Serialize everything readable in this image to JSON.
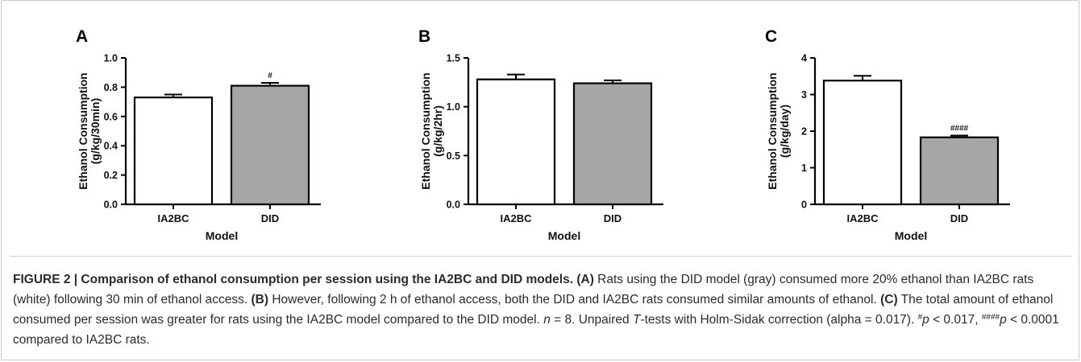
{
  "chart_data": [
    {
      "panel": "A",
      "type": "bar",
      "categories": [
        "IA2BC",
        "DID"
      ],
      "values": [
        0.73,
        0.81
      ],
      "errors": [
        0.02,
        0.02
      ],
      "bar_colors": [
        "#ffffff",
        "#a6a6a6"
      ],
      "significance": [
        "",
        "#"
      ],
      "ylim": [
        0,
        1.0
      ],
      "yticks": [
        "0.0",
        "0.2",
        "0.4",
        "0.6",
        "0.8",
        "1.0"
      ],
      "ylabel_line1": "Ethanol  Consumption",
      "ylabel_line2": "(g/kg/30min)",
      "xlabel": "Model",
      "grid": false
    },
    {
      "panel": "B",
      "type": "bar",
      "categories": [
        "IA2BC",
        "DID"
      ],
      "values": [
        1.28,
        1.24
      ],
      "errors": [
        0.05,
        0.03
      ],
      "bar_colors": [
        "#ffffff",
        "#a6a6a6"
      ],
      "significance": [
        "",
        ""
      ],
      "ylim": [
        0,
        1.5
      ],
      "yticks": [
        "0.0",
        "0.5",
        "1.0",
        "1.5"
      ],
      "ylabel_line1": "Ethanol  Consumption",
      "ylabel_line2": "(g/kg/2hr)",
      "xlabel": "Model",
      "grid": false
    },
    {
      "panel": "C",
      "type": "bar",
      "categories": [
        "IA2BC",
        "DID"
      ],
      "values": [
        3.38,
        1.83
      ],
      "errors": [
        0.13,
        0.05
      ],
      "bar_colors": [
        "#ffffff",
        "#a6a6a6"
      ],
      "significance": [
        "",
        "####"
      ],
      "ylim": [
        0,
        4
      ],
      "yticks": [
        "0",
        "1",
        "2",
        "3",
        "4"
      ],
      "ylabel_line1": "Ethanol  Consumption",
      "ylabel_line2": "(g/kg/day)",
      "xlabel": "Model",
      "grid": false
    }
  ],
  "caption": {
    "figure_label": "FIGURE 2 | Comparison of ethanol consumption per session using the IA2BC and DID models.",
    "tag_a": "(A)",
    "text_a": " Rats using the DID model (gray) consumed more 20% ethanol than IA2BC rats (white) following 30 min of ethanol access. ",
    "tag_b": "(B)",
    "text_b": " However, following 2 h of ethanol access, both the DID and IA2BC rats consumed similar amounts of ethanol. ",
    "tag_c": "(C)",
    "text_c": " The total amount of ethanol consumed per session was greater for rats using the IA2BC model compared to the DID model. ",
    "n_var": "n",
    "n_text": " = 8. Unpaired ",
    "t_var": "T",
    "t_text": "-tests with Holm-Sidak correction (alpha = 0.017). ",
    "sig1_mark": "#",
    "p_var1": "p",
    "sig1_text": " < 0.017, ",
    "sig4_mark": "####",
    "p_var2": "p",
    "sig4_text": " < 0.0001 compared to IA2BC rats."
  }
}
